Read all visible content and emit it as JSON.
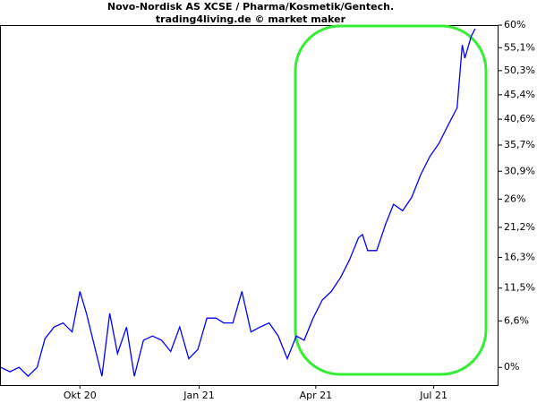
{
  "chart_data": {
    "type": "line",
    "title": "Novo-Nordisk AS XCSE / Pharma/Kosmetik/Gentech.",
    "subtitle": "trading4living.de © market maker",
    "yscale": "log-return",
    "ylim": [
      -2.4,
      60
    ],
    "yticks": [
      {
        "value": 0,
        "label": "0%"
      },
      {
        "value": 6.6,
        "label": "6,6%"
      },
      {
        "value": 11.5,
        "label": "11,5%"
      },
      {
        "value": 16.3,
        "label": "16,3%"
      },
      {
        "value": 21.2,
        "label": "21,2%"
      },
      {
        "value": 26,
        "label": "26%"
      },
      {
        "value": 30.9,
        "label": "30,9%"
      },
      {
        "value": 35.7,
        "label": "35,7%"
      },
      {
        "value": 40.6,
        "label": "40,6%"
      },
      {
        "value": 45.4,
        "label": "45,4%"
      },
      {
        "value": 50.3,
        "label": "50,3%"
      },
      {
        "value": 55.1,
        "label": "55,1%"
      },
      {
        "value": 60,
        "label": "60%"
      }
    ],
    "xlim": [
      0,
      384
    ],
    "xticks": [
      {
        "value": 61,
        "label": "Okt 20"
      },
      {
        "value": 153,
        "label": "Jan 21"
      },
      {
        "value": 243,
        "label": "Apr 21"
      },
      {
        "value": 334,
        "label": "Jul 21"
      }
    ],
    "x": [
      0,
      7,
      14,
      21,
      28,
      34,
      41,
      48,
      55,
      61,
      66,
      72,
      78,
      84,
      90,
      97,
      103,
      110,
      117,
      124,
      131,
      138,
      145,
      152,
      159,
      166,
      172,
      179,
      186,
      193,
      200,
      207,
      214,
      221,
      228,
      234,
      241,
      248,
      255,
      262,
      269,
      276,
      279,
      283,
      290,
      297,
      303,
      310,
      317,
      324,
      331,
      338,
      345,
      352,
      356,
      358,
      363,
      366
    ],
    "series": [
      {
        "name": "Novo-Nordisk AS XCSE",
        "color": "#0000ff",
        "values": [
          0,
          -0.6,
          0,
          -1.2,
          0,
          4.0,
          5.7,
          6.3,
          5.0,
          11.0,
          7.7,
          3.1,
          -1.2,
          7.7,
          1.9,
          5.7,
          -1.2,
          3.8,
          4.4,
          3.8,
          2.2,
          5.7,
          1.2,
          2.5,
          7.0,
          7.0,
          6.3,
          6.3,
          11.0,
          5.0,
          5.7,
          6.3,
          4.4,
          1.2,
          4.4,
          3.8,
          7.0,
          9.7,
          11.0,
          13.1,
          15.9,
          19.5,
          20.0,
          17.4,
          17.4,
          21.8,
          25.1,
          24.0,
          26.3,
          30.3,
          33.6,
          36.0,
          39.4,
          42.8,
          55.7,
          52.9,
          57.6,
          59.2
        ]
      }
    ]
  }
}
